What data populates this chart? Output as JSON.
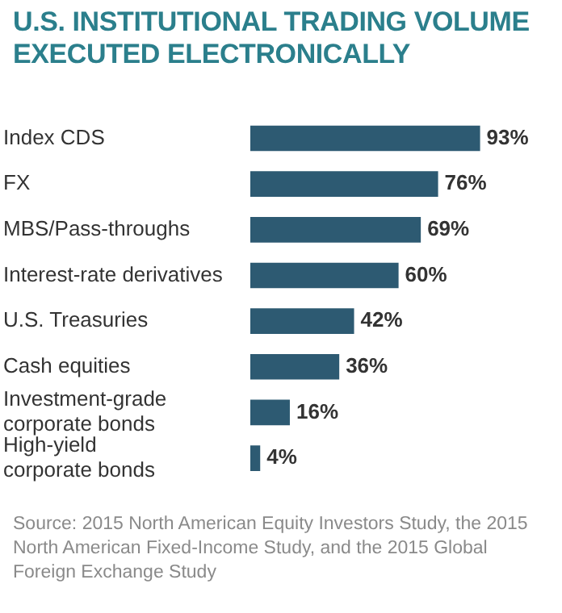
{
  "chart_data": {
    "type": "bar",
    "orientation": "horizontal",
    "title": "U.S. INSTITUTIONAL TRADING VOLUME EXECUTED ELECTRONICALLY",
    "categories": [
      "Index CDS",
      "FX",
      "MBS/Pass-throughs",
      "Interest-rate derivatives",
      "U.S. Treasuries",
      "Cash equities",
      "Investment-grade\ncorporate bonds",
      "High-yield\ncorporate bonds"
    ],
    "values": [
      93,
      76,
      69,
      60,
      42,
      36,
      16,
      4
    ],
    "value_labels": [
      "93%",
      "76%",
      "69%",
      "60%",
      "42%",
      "36%",
      "16%",
      "4%"
    ],
    "color": "#2d5a72",
    "annotations": [
      "Source: 2015 North American Equity Investors Study, the 2015 North American Fixed-Income Study, and the 2015 Global Foreign Exchange Study"
    ]
  }
}
